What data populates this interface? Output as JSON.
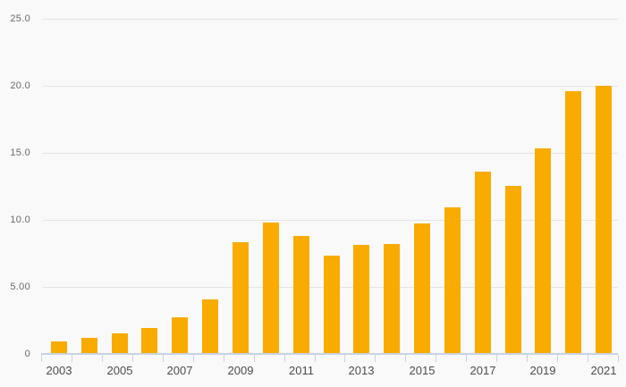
{
  "chart_data": {
    "type": "bar",
    "title": "",
    "xlabel": "",
    "ylabel": "",
    "categories": [
      "2003",
      "2004",
      "2005",
      "2006",
      "2007",
      "2008",
      "2009",
      "2010",
      "2011",
      "2012",
      "2013",
      "2014",
      "2015",
      "2016",
      "2017",
      "2018",
      "2019",
      "2020",
      "2021"
    ],
    "values": [
      0.9,
      1.2,
      1.5,
      1.9,
      2.7,
      4.1,
      8.3,
      9.8,
      8.8,
      7.3,
      8.1,
      8.2,
      9.7,
      10.9,
      13.6,
      12.5,
      15.3,
      19.6,
      20.0
    ],
    "ylim": [
      0,
      25
    ],
    "y_ticks": [
      {
        "value": 25,
        "label": "25.0"
      },
      {
        "value": 20,
        "label": "20.0"
      },
      {
        "value": 15,
        "label": "15.0"
      },
      {
        "value": 10,
        "label": "10.0"
      },
      {
        "value": 5,
        "label": "5.00"
      },
      {
        "value": 0,
        "label": "0"
      }
    ],
    "x_tick_labels": [
      "2003",
      "2005",
      "2007",
      "2009",
      "2011",
      "2013",
      "2015",
      "2017",
      "2019",
      "2021"
    ],
    "x_label_every": 2,
    "grid": "horizontal",
    "legend": "none",
    "bar_color": "#F9AB00",
    "colors": {
      "background": "#F9F9F9",
      "gridline": "#E4E4E4",
      "axis_line": "#C9D2E4",
      "y_label_text": "#6A6A6A",
      "x_label_text": "#4C4C4C"
    }
  }
}
